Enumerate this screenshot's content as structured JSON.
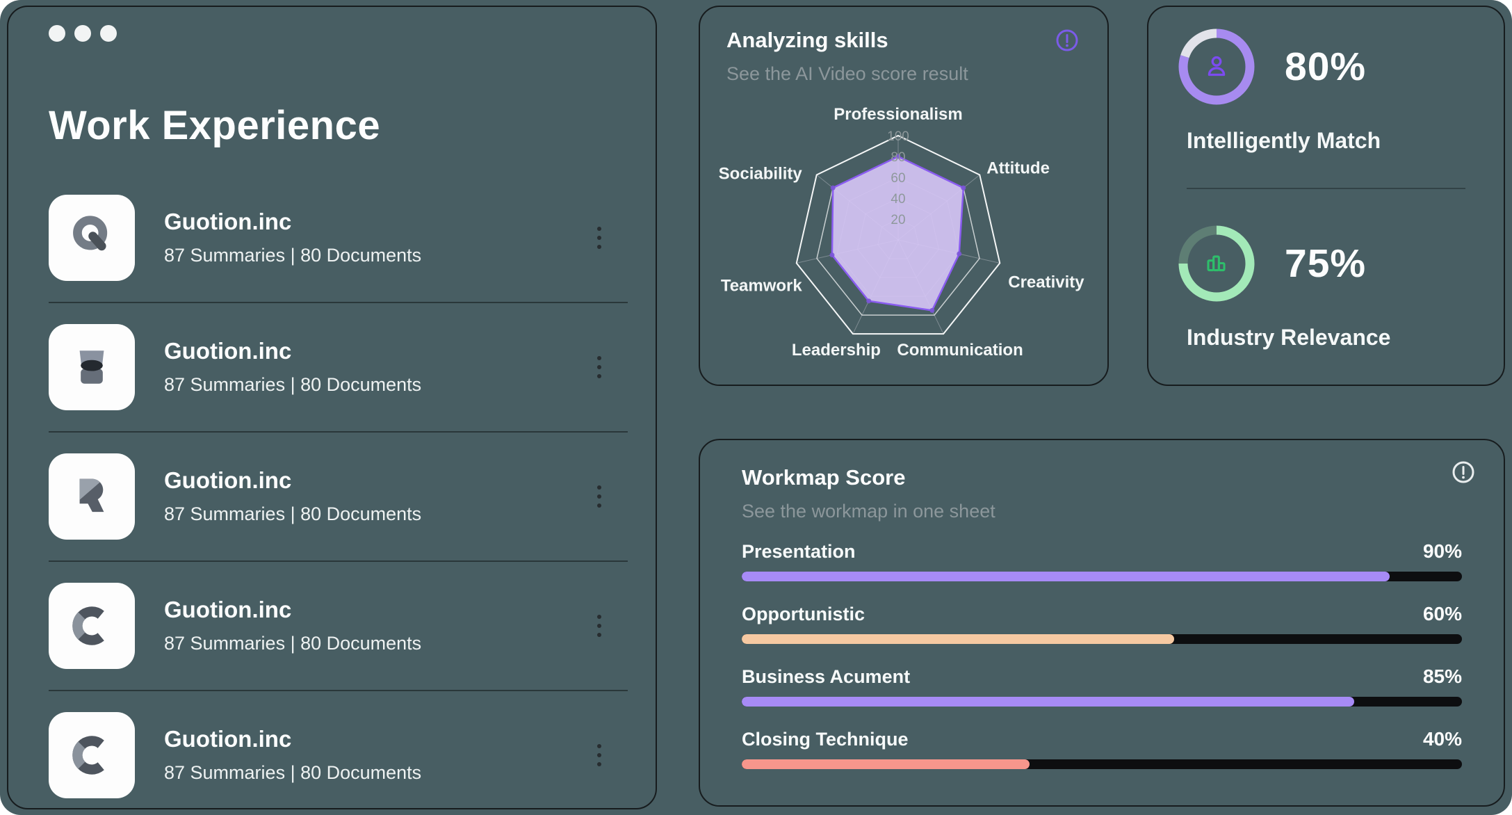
{
  "window": {
    "traffic_dots": [
      "#F2F4F4",
      "#F2F4F4",
      "#F2F4F4"
    ]
  },
  "colors": {
    "background": "#485E63",
    "panel_border": "#171C1E",
    "text_primary": "#FCFDFD",
    "text_muted": "#8C979B",
    "accent_purple": "#8A5CF0",
    "accent_green": "#2EBE6B"
  },
  "icons": {
    "window_dots": "traffic-dots",
    "row_menu": "kebab-vertical-ellipsis",
    "skills_info": "circled-exclamation-icon-purple",
    "workmap_info": "circled-exclamation-icon-white",
    "logos": [
      "q-logo",
      "hourglass-logo",
      "r-logo",
      "c-logo",
      "c-logo"
    ]
  },
  "work_experience": {
    "title": "Work Experience",
    "items": [
      {
        "company": "Guotion.inc",
        "meta": "87 Summaries | 80 Documents",
        "logo": "q-logo"
      },
      {
        "company": "Guotion.inc",
        "meta": "87 Summaries | 80 Documents",
        "logo": "hourglass-logo"
      },
      {
        "company": "Guotion.inc",
        "meta": "87 Summaries | 80 Documents",
        "logo": "r-logo"
      },
      {
        "company": "Guotion.inc",
        "meta": "87 Summaries | 80 Documents",
        "logo": "c-logo"
      },
      {
        "company": "Guotion.inc",
        "meta": "87 Summaries | 80 Documents",
        "logo": "c-logo"
      }
    ]
  },
  "chart_data": [
    {
      "type": "radar",
      "title": "Analyzing skills",
      "subtitle": "See the AI Video score result",
      "categories": [
        "Professionalism",
        "Attitude",
        "Creativity",
        "Communication",
        "Leadership",
        "Teamwork",
        "Sociability"
      ],
      "values": [
        80,
        80,
        60,
        75,
        65,
        65,
        80
      ],
      "range": [
        0,
        100
      ],
      "rings": [
        20,
        40,
        60,
        80,
        100
      ],
      "tick_labels": [
        "20",
        "40",
        "60",
        "80",
        "100"
      ],
      "fill_color": "#D7C7F7",
      "fill_opacity": 0.9,
      "stroke_color": "#8A5CF0",
      "vertex_dot_color": "#7A54D8",
      "grid_on": true,
      "legend": "none"
    },
    {
      "type": "bar",
      "title": "Workmap Score",
      "subtitle": "See the workmap in one sheet",
      "categories": [
        "Presentation",
        "Opportunistic",
        "Business Acument",
        "Closing Technique"
      ],
      "values": [
        90,
        60,
        85,
        40
      ],
      "value_labels": [
        "90%",
        "60%",
        "85%",
        "40%"
      ],
      "colors": [
        "#A78BF6",
        "#F6C9A2",
        "#A78BF6",
        "#F7968C"
      ],
      "track_color": "#0D0E10",
      "xlim": [
        0,
        100
      ]
    },
    {
      "type": "donut",
      "series": [
        {
          "label": "Intelligently Match",
          "value": 80,
          "display": "80%",
          "color": "#A78BF0",
          "remainder_color": "#E2E3EA",
          "icon": "person-icon",
          "icon_color": "#7C4BF0"
        },
        {
          "label": "Industry Relevance",
          "value": 75,
          "display": "75%",
          "color": "#A3E9B8",
          "remainder_color": "#5E7E74",
          "icon": "bar-chart-icon",
          "icon_color": "#2EBE6B"
        }
      ]
    }
  ]
}
